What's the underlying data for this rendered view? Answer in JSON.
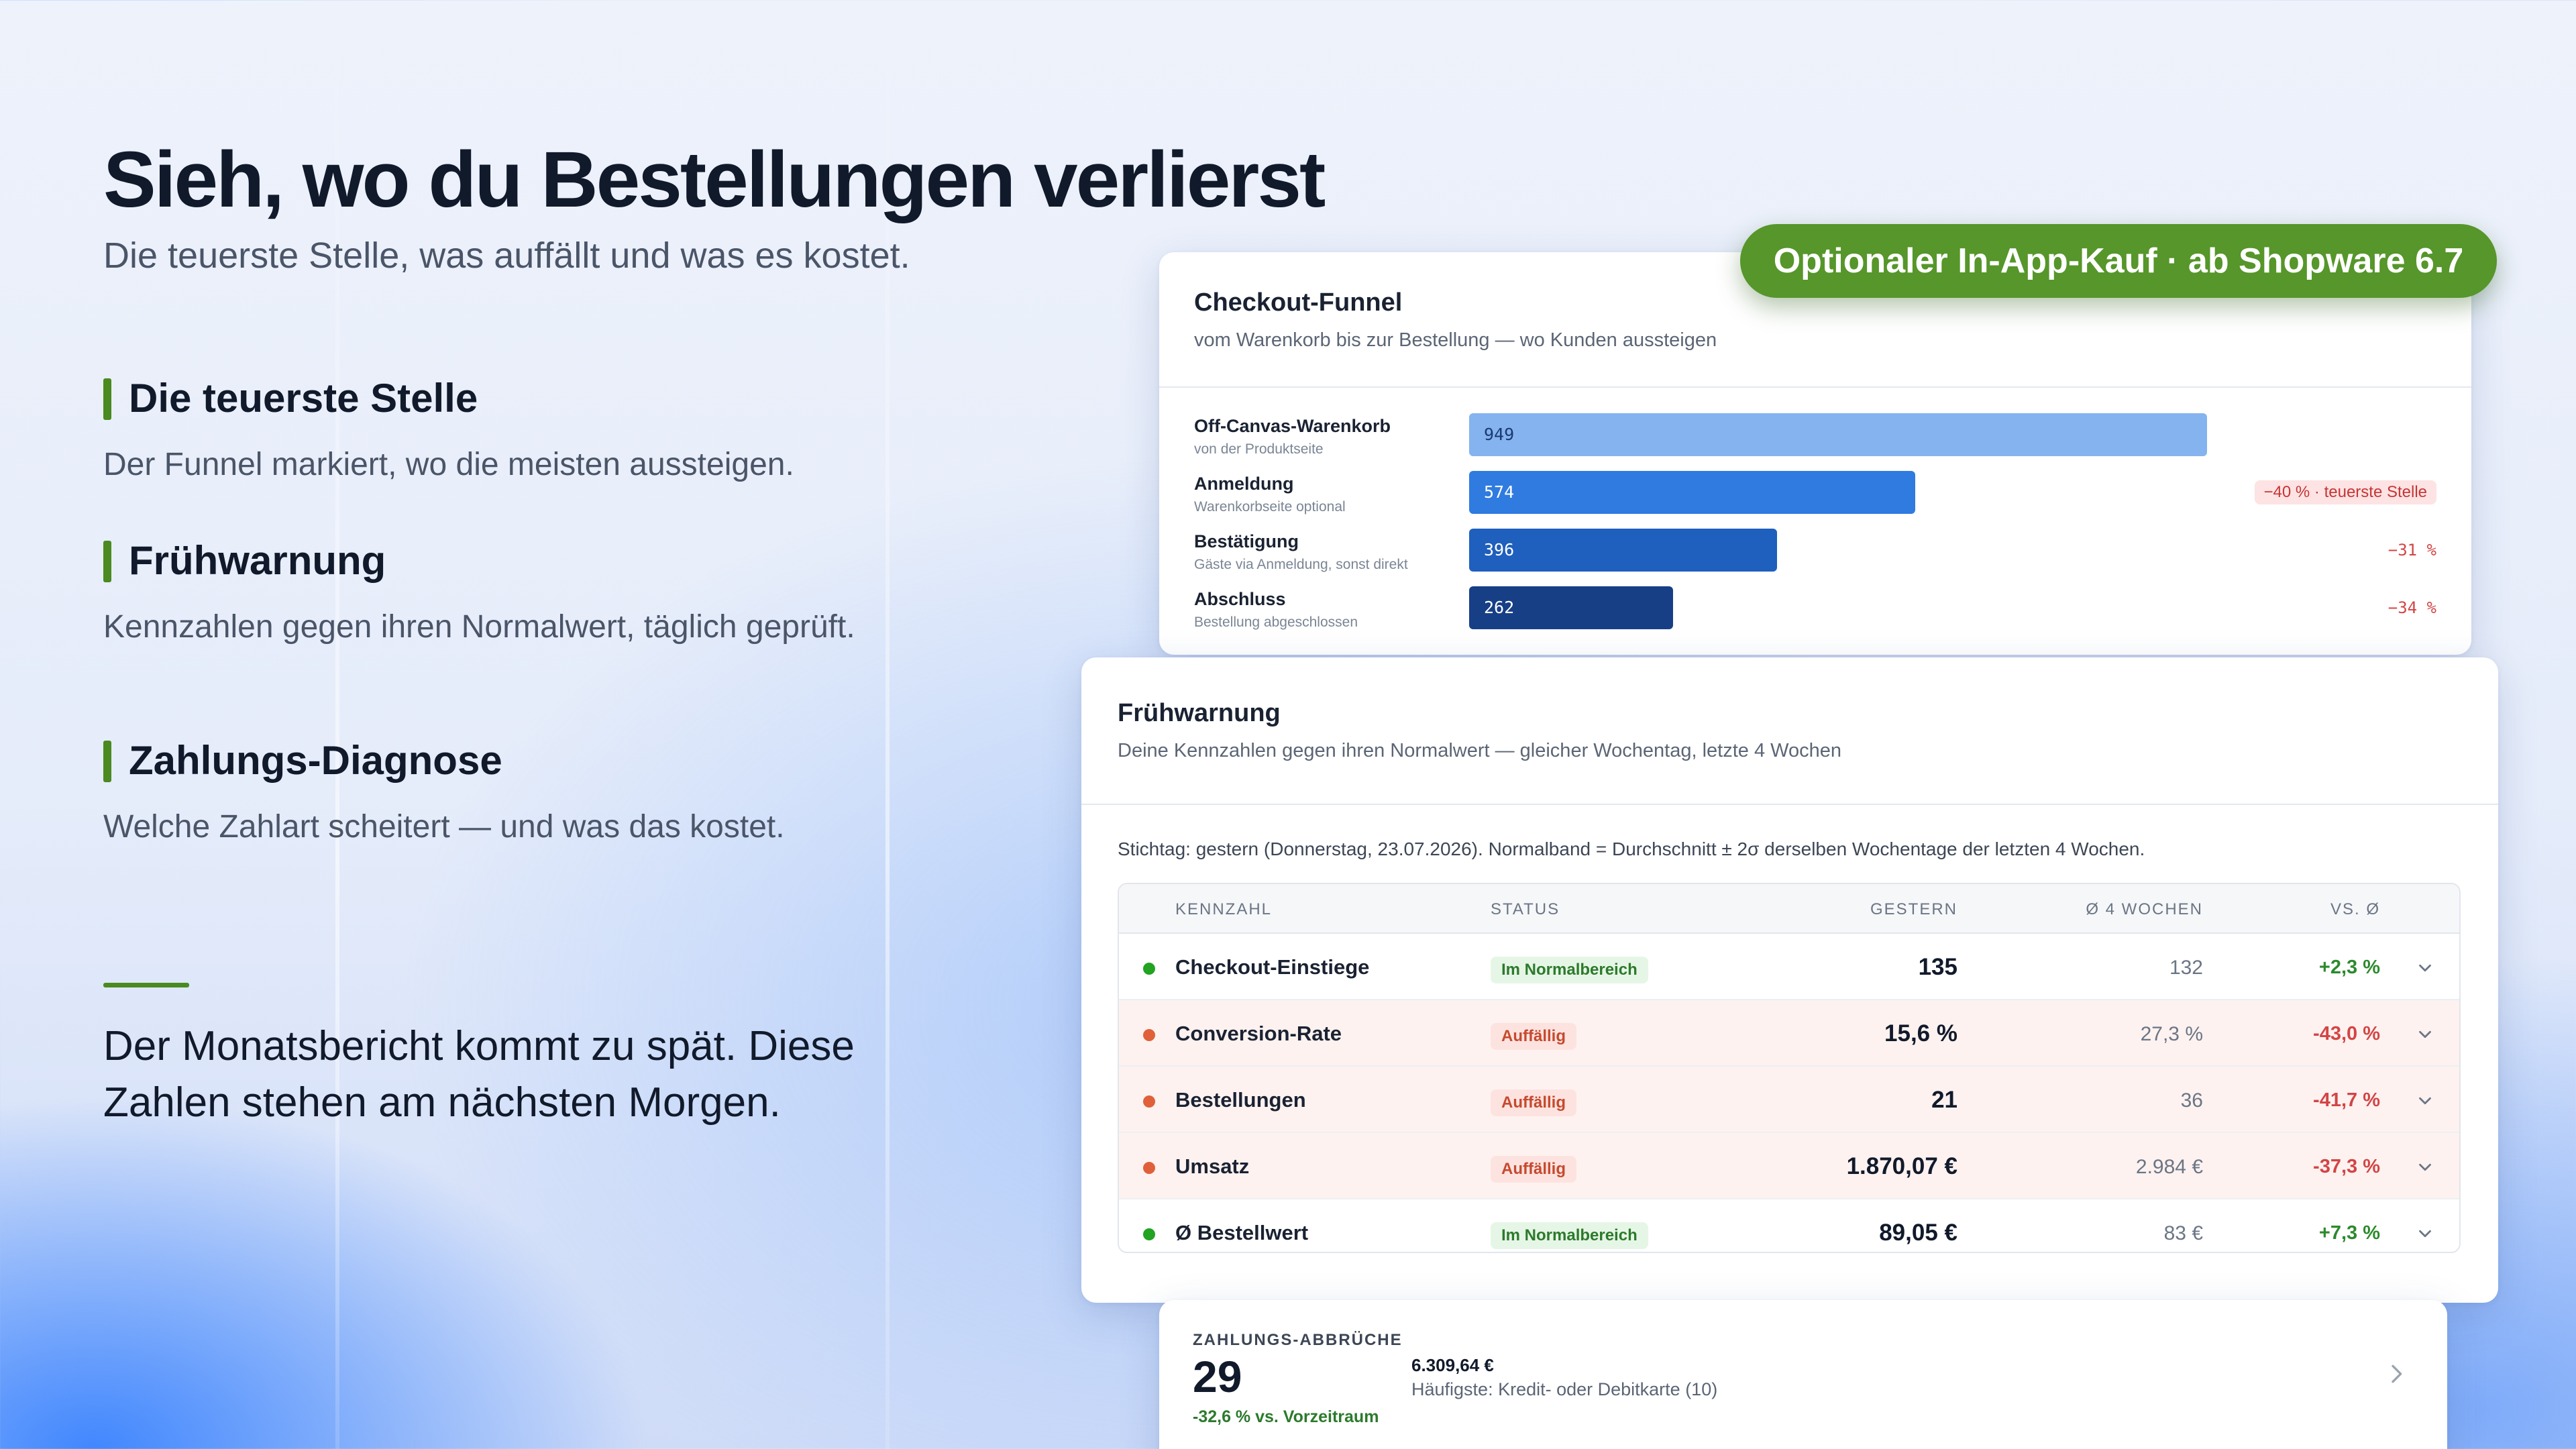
{
  "hero": {
    "title": "Sieh, wo du Bestellungen verlierst",
    "subtitle": "Die teuerste Stelle, was auffällt und was es kostet."
  },
  "features": [
    {
      "title": "Die teuerste Stelle",
      "desc": "Der Funnel markiert, wo die meisten aussteigen."
    },
    {
      "title": "Frühwarnung",
      "desc": "Kennzahlen gegen ihren Normalwert, täglich geprüft."
    },
    {
      "title": "Zahlungs-Diagnose",
      "desc": "Welche Zahlart scheitert — und was das kostet."
    }
  ],
  "closing": "Der Monatsbericht kommt zu spät. Diese Zahlen stehen am nächsten Morgen.",
  "badge": "Optionaler In-App-Kauf · ab Shopware 6.7",
  "funnel": {
    "title": "Checkout-Funnel",
    "subtitle": "vom Warenkorb bis zur Bestellung — wo Kunden aussteigen",
    "max": 949,
    "steps": [
      {
        "label": "Off-Canvas-Warenkorb",
        "sub": "von der Produktseite",
        "value": 949,
        "drop": ""
      },
      {
        "label": "Anmeldung",
        "sub": "Warenkorbseite optional",
        "value": 574,
        "drop": "−40 % · teuerste Stelle"
      },
      {
        "label": "Bestätigung",
        "sub": "Gäste via Anmeldung, sonst direkt",
        "value": 396,
        "drop": "−31 %"
      },
      {
        "label": "Abschluss",
        "sub": "Bestellung abgeschlossen",
        "value": 262,
        "drop": "−34 %"
      }
    ]
  },
  "warning": {
    "title": "Frühwarnung",
    "subtitle": "Deine Kennzahlen gegen ihren Normalwert — gleicher Wochentag, letzte 4 Wochen",
    "stichtag": "Stichtag: gestern (Donnerstag, 23.07.2026). Normalband = Durchschnitt ± 2σ derselben Wochentage der letzten 4 Wochen.",
    "columns": [
      "KENNZAHL",
      "STATUS",
      "GESTERN",
      "Ø 4 WOCHEN",
      "VS. Ø"
    ],
    "rows": [
      {
        "name": "Checkout-Einstiege",
        "status": "Im Normalbereich",
        "gestern": "135",
        "avg": "132",
        "vs": "+2,3 %"
      },
      {
        "name": "Conversion-Rate",
        "status": "Auffällig",
        "gestern": "15,6 %",
        "avg": "27,3 %",
        "vs": "-43,0 %"
      },
      {
        "name": "Bestellungen",
        "status": "Auffällig",
        "gestern": "21",
        "avg": "36",
        "vs": "-41,7 %"
      },
      {
        "name": "Umsatz",
        "status": "Auffällig",
        "gestern": "1.870,07 €",
        "avg": "2.984 €",
        "vs": "-37,3 %"
      },
      {
        "name": "Ø Bestellwert",
        "status": "Im Normalbereich",
        "gestern": "89,05 €",
        "avg": "83 €",
        "vs": "+7,3 %"
      }
    ],
    "colors": {
      "ok": "#22a322",
      "bad": "#e0603a"
    }
  },
  "payment": {
    "label": "ZAHLUNGS-ABBRÜCHE",
    "count": "29",
    "delta": "-32,6 % vs. Vorzeitraum",
    "amount": "6.309,64 €",
    "top": "Häufigste: Kredit- oder Debitkarte (10)"
  }
}
